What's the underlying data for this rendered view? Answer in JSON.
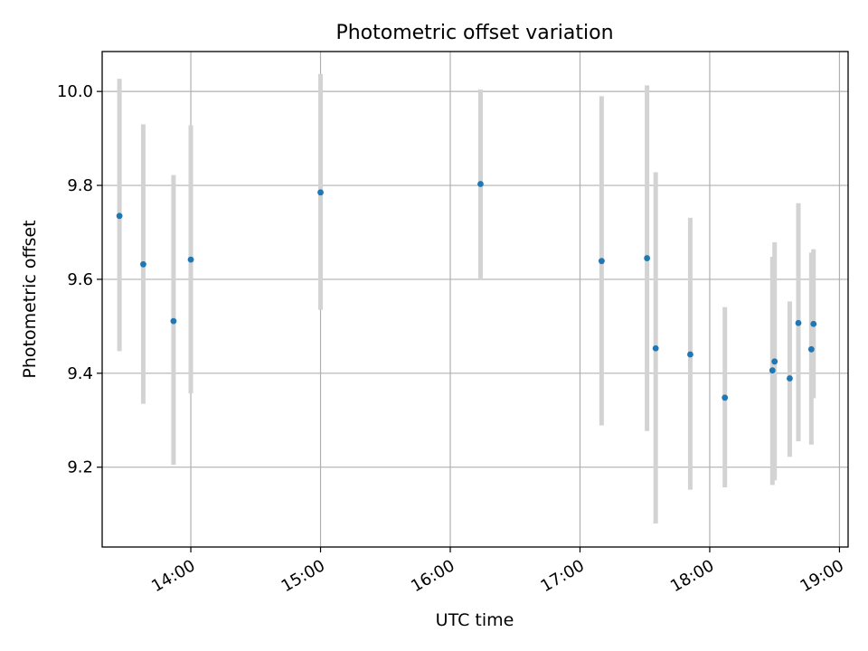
{
  "chart_data": {
    "type": "scatter",
    "title": "Photometric offset variation",
    "xlabel": "UTC time",
    "ylabel": "Photometric offset",
    "x_ticks": [
      "14:00",
      "15:00",
      "16:00",
      "17:00",
      "18:00",
      "19:00"
    ],
    "y_ticks": [
      "9.2",
      "9.4",
      "9.6",
      "9.8",
      "10.0"
    ],
    "xlim": [
      "13:19",
      "19:04"
    ],
    "ylim": [
      9.03,
      10.085
    ],
    "grid": true,
    "error_bars": true,
    "colors": {
      "marker": "#1f77b4",
      "error_bar": "#d3d3d3",
      "grid": "#b0b0b0"
    },
    "points": [
      {
        "time": "13:27",
        "value": 9.735,
        "low": 9.447,
        "high": 10.027
      },
      {
        "time": "13:38",
        "value": 9.632,
        "low": 9.335,
        "high": 9.93
      },
      {
        "time": "13:52",
        "value": 9.511,
        "low": 9.205,
        "high": 9.822
      },
      {
        "time": "14:00",
        "value": 9.642,
        "low": 9.357,
        "high": 9.928
      },
      {
        "time": "15:00",
        "value": 9.785,
        "low": 9.535,
        "high": 10.037
      },
      {
        "time": "16:14",
        "value": 9.803,
        "low": 9.602,
        "high": 10.004
      },
      {
        "time": "17:10",
        "value": 9.639,
        "low": 9.289,
        "high": 9.99
      },
      {
        "time": "17:31",
        "value": 9.645,
        "low": 9.277,
        "high": 10.013
      },
      {
        "time": "17:35",
        "value": 9.453,
        "low": 9.08,
        "high": 9.828
      },
      {
        "time": "17:51",
        "value": 9.44,
        "low": 9.152,
        "high": 9.731
      },
      {
        "time": "18:07",
        "value": 9.348,
        "low": 9.157,
        "high": 9.541
      },
      {
        "time": "18:29",
        "value": 9.406,
        "low": 9.162,
        "high": 9.648
      },
      {
        "time": "18:30",
        "value": 9.425,
        "low": 9.172,
        "high": 9.679
      },
      {
        "time": "18:37",
        "value": 9.389,
        "low": 9.222,
        "high": 9.553
      },
      {
        "time": "18:41",
        "value": 9.507,
        "low": 9.255,
        "high": 9.762
      },
      {
        "time": "18:47",
        "value": 9.451,
        "low": 9.248,
        "high": 9.657
      },
      {
        "time": "18:48",
        "value": 9.505,
        "low": 9.347,
        "high": 9.664
      }
    ]
  }
}
